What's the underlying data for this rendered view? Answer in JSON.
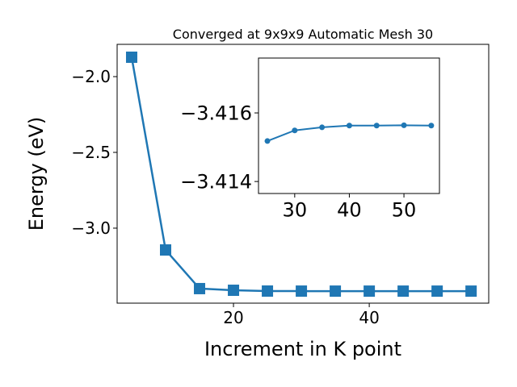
{
  "chart_data": [
    {
      "type": "line",
      "title": "Converged at 9x9x9 Automatic Mesh 30",
      "x_label": "Increment in K point",
      "y_label": "Energy (eV)",
      "x": [
        5,
        10,
        15,
        20,
        25,
        30,
        35,
        40,
        45,
        50,
        55
      ],
      "values": [
        -1.872,
        -3.144,
        -3.399,
        -3.41,
        -3.4152,
        -3.4155,
        -3.4156,
        -3.4156,
        -3.4156,
        -3.4156,
        -3.4156
      ],
      "color": "#1f77b4",
      "marker": "square",
      "xlim": [
        2.86,
        57.6
      ],
      "ylim": [
        -3.495,
        -1.787
      ],
      "xticks": [
        20,
        40
      ],
      "yticks": [
        {
          "value": -2.0,
          "label": "−2.0"
        },
        {
          "value": -2.5,
          "label": "−2.5"
        },
        {
          "value": -3.0,
          "label": "−3.0"
        }
      ]
    },
    {
      "type": "line",
      "x": [
        25,
        30,
        35,
        40,
        45,
        50,
        55
      ],
      "values": [
        -3.41518,
        -3.41549,
        -3.41558,
        -3.41563,
        -3.41563,
        -3.41564,
        -3.41563
      ],
      "color": "#1f77b4",
      "marker": "circle",
      "xlim": [
        23.37,
        56.5
      ],
      "ylim": [
        -3.41365,
        -3.4176
      ],
      "xticks": [
        30,
        40,
        50
      ],
      "yticks": [
        {
          "value": -3.416,
          "label": "−3.416"
        },
        {
          "value": -3.414,
          "label": "−3.414"
        }
      ]
    }
  ]
}
